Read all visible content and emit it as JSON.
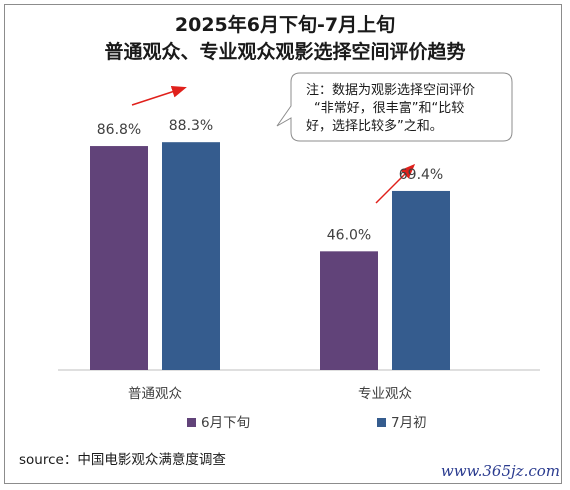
{
  "title_line1": "2025年6月下旬-7月上旬",
  "title_line2": "普通观众、专业观众观影选择空间评价趋势",
  "note_lines": [
    "注：数据为观影选择空间评价",
    "“非常好，很丰富”和“比较",
    "好，选择比较多”之和。"
  ],
  "source": "source：中国电影观众满意度调查",
  "watermark": "www.365jz.com",
  "colors": {
    "series1": "#614379",
    "series2": "#355c8e",
    "arrow": "#e0201b"
  },
  "chart_data": {
    "type": "bar",
    "categories": [
      "普通观众",
      "专业观众"
    ],
    "series": [
      {
        "name": "6月下旬",
        "values": [
          86.8,
          46.0
        ]
      },
      {
        "name": "7月初",
        "values": [
          88.3,
          69.4
        ]
      }
    ],
    "value_labels": [
      [
        "86.8%",
        "46.0%"
      ],
      [
        "88.3%",
        "69.4%"
      ]
    ],
    "ylim": [
      0,
      100
    ],
    "grid": false,
    "legend": "bottom"
  }
}
